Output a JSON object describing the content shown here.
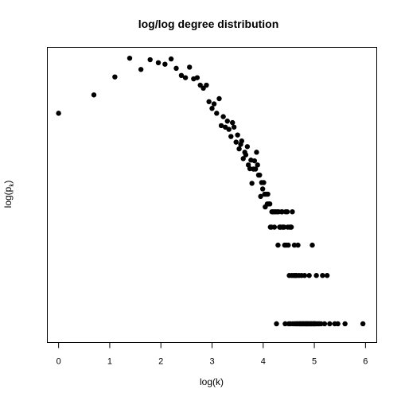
{
  "chart_data": {
    "type": "scatter",
    "title": "log/log degree distribution",
    "xlabel": "log(k)",
    "ylabel": "log(p",
    "ylabel_sub": "k",
    "ylabel_close": ")",
    "xlim": [
      -0.22,
      6.22
    ],
    "ylim": [
      -8.6,
      -0.72
    ],
    "xticks": [
      0,
      1,
      2,
      3,
      4,
      5,
      6
    ],
    "y_ticks_shown": false,
    "grid": false,
    "legend": "none",
    "marker_color": "#000000",
    "points": [
      [
        0.0,
        -2.48
      ],
      [
        0.69,
        -1.99
      ],
      [
        1.1,
        -1.51
      ],
      [
        1.39,
        -1.01
      ],
      [
        1.61,
        -1.31
      ],
      [
        1.79,
        -1.05
      ],
      [
        1.95,
        -1.13
      ],
      [
        2.08,
        -1.17
      ],
      [
        2.2,
        -1.03
      ],
      [
        2.3,
        -1.28
      ],
      [
        2.4,
        -1.47
      ],
      [
        2.48,
        -1.53
      ],
      [
        2.56,
        -1.25
      ],
      [
        2.64,
        -1.56
      ],
      [
        2.71,
        -1.53
      ],
      [
        2.77,
        -1.73
      ],
      [
        2.83,
        -1.81
      ],
      [
        2.89,
        -1.73
      ],
      [
        2.94,
        -2.17
      ],
      [
        3.0,
        -2.35
      ],
      [
        3.04,
        -2.23
      ],
      [
        3.09,
        -2.48
      ],
      [
        3.14,
        -2.09
      ],
      [
        3.18,
        -2.81
      ],
      [
        3.22,
        -2.57
      ],
      [
        3.26,
        -2.85
      ],
      [
        3.3,
        -2.69
      ],
      [
        3.33,
        -2.91
      ],
      [
        3.37,
        -3.1
      ],
      [
        3.4,
        -2.73
      ],
      [
        3.43,
        -2.85
      ],
      [
        3.47,
        -3.25
      ],
      [
        3.5,
        -3.06
      ],
      [
        3.53,
        -3.43
      ],
      [
        3.56,
        -3.31
      ],
      [
        3.58,
        -3.22
      ],
      [
        3.61,
        -3.69
      ],
      [
        3.64,
        -3.52
      ],
      [
        3.66,
        -3.59
      ],
      [
        3.69,
        -3.37
      ],
      [
        3.71,
        -3.86
      ],
      [
        3.74,
        -3.96
      ],
      [
        3.76,
        -3.73
      ],
      [
        3.78,
        -4.35
      ],
      [
        3.81,
        -3.97
      ],
      [
        3.83,
        -3.75
      ],
      [
        3.85,
        -3.97
      ],
      [
        3.87,
        -3.52
      ],
      [
        3.89,
        -3.86
      ],
      [
        3.91,
        -4.13
      ],
      [
        3.93,
        -4.13
      ],
      [
        3.95,
        -4.7
      ],
      [
        3.97,
        -4.33
      ],
      [
        3.99,
        -4.5
      ],
      [
        4.01,
        -4.33
      ],
      [
        4.03,
        -4.64
      ],
      [
        4.04,
        -4.98
      ],
      [
        4.06,
        -4.64
      ],
      [
        4.08,
        -4.9
      ],
      [
        4.09,
        -4.64
      ],
      [
        4.11,
        -4.9
      ],
      [
        4.13,
        -4.9
      ],
      [
        4.14,
        -5.52
      ],
      [
        4.16,
        -5.52
      ],
      [
        4.17,
        -5.11
      ],
      [
        4.19,
        -5.11
      ],
      [
        4.2,
        -5.11
      ],
      [
        4.22,
        -5.52
      ],
      [
        4.23,
        -5.11
      ],
      [
        4.25,
        -5.11
      ],
      [
        4.26,
        -8.1
      ],
      [
        4.28,
        -5.11
      ],
      [
        4.29,
        -6.0
      ],
      [
        4.3,
        -5.11
      ],
      [
        4.32,
        -5.52
      ],
      [
        4.33,
        -5.52
      ],
      [
        4.34,
        -5.52
      ],
      [
        4.36,
        -5.11
      ],
      [
        4.37,
        -5.11
      ],
      [
        4.38,
        -5.52
      ],
      [
        4.39,
        -5.52
      ],
      [
        4.41,
        -5.52
      ],
      [
        4.42,
        -6.0
      ],
      [
        4.43,
        -8.1
      ],
      [
        4.44,
        -5.11
      ],
      [
        4.45,
        -6.0
      ],
      [
        4.47,
        -5.11
      ],
      [
        4.48,
        -5.52
      ],
      [
        4.49,
        -6.0
      ],
      [
        4.5,
        -8.1
      ],
      [
        4.51,
        -6.81
      ],
      [
        4.52,
        -5.52
      ],
      [
        4.53,
        -8.1
      ],
      [
        4.54,
        -5.52
      ],
      [
        4.55,
        -5.52
      ],
      [
        4.56,
        -6.81
      ],
      [
        4.57,
        -5.11
      ],
      [
        4.58,
        -8.1
      ],
      [
        4.6,
        -6.81
      ],
      [
        4.61,
        -6.0
      ],
      [
        4.62,
        -8.1
      ],
      [
        4.63,
        -6.81
      ],
      [
        4.64,
        -8.1
      ],
      [
        4.65,
        -6.81
      ],
      [
        4.66,
        -8.1
      ],
      [
        4.67,
        -8.1
      ],
      [
        4.68,
        -6.0
      ],
      [
        4.69,
        -8.1
      ],
      [
        4.7,
        -6.81
      ],
      [
        4.71,
        -8.1
      ],
      [
        4.72,
        -8.1
      ],
      [
        4.73,
        -8.1
      ],
      [
        4.74,
        -8.1
      ],
      [
        4.75,
        -6.81
      ],
      [
        4.76,
        -8.1
      ],
      [
        4.77,
        -8.1
      ],
      [
        4.78,
        -8.1
      ],
      [
        4.79,
        -8.1
      ],
      [
        4.8,
        -8.1
      ],
      [
        4.81,
        -6.81
      ],
      [
        4.82,
        -8.1
      ],
      [
        4.83,
        -8.1
      ],
      [
        4.84,
        -8.1
      ],
      [
        4.85,
        -8.1
      ],
      [
        4.86,
        -8.1
      ],
      [
        4.87,
        -8.1
      ],
      [
        4.88,
        -8.1
      ],
      [
        4.89,
        -8.1
      ],
      [
        4.9,
        -6.81
      ],
      [
        4.91,
        -8.1
      ],
      [
        4.92,
        -8.1
      ],
      [
        4.93,
        -8.1
      ],
      [
        4.94,
        -8.1
      ],
      [
        4.95,
        -8.1
      ],
      [
        4.96,
        -6.0
      ],
      [
        4.97,
        -8.1
      ],
      [
        4.98,
        -8.1
      ],
      [
        4.99,
        -8.1
      ],
      [
        5.0,
        -8.1
      ],
      [
        5.01,
        -8.1
      ],
      [
        5.02,
        -8.1
      ],
      [
        5.03,
        -8.1
      ],
      [
        5.04,
        -6.81
      ],
      [
        5.06,
        -8.1
      ],
      [
        5.08,
        -8.1
      ],
      [
        5.1,
        -8.1
      ],
      [
        5.13,
        -8.1
      ],
      [
        5.16,
        -6.81
      ],
      [
        5.2,
        -8.1
      ],
      [
        5.25,
        -6.81
      ],
      [
        5.3,
        -8.1
      ],
      [
        5.4,
        -8.1
      ],
      [
        5.46,
        -8.1
      ],
      [
        5.6,
        -8.1
      ],
      [
        5.95,
        -8.1
      ]
    ]
  }
}
